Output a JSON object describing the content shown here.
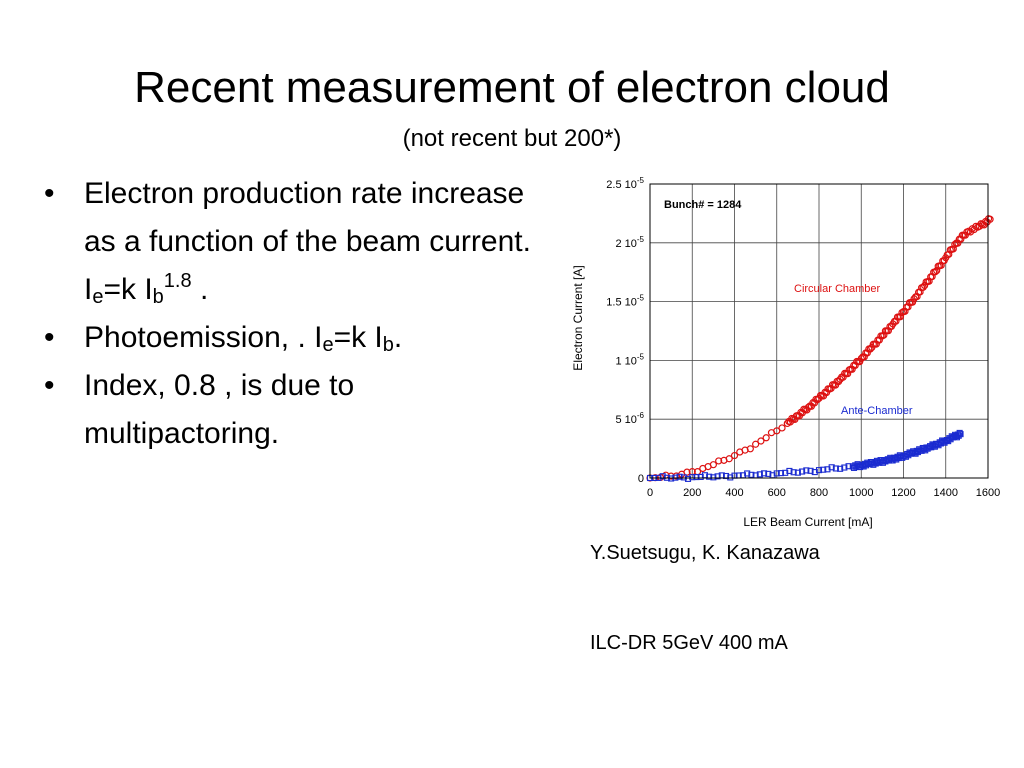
{
  "slide": {
    "title": "Recent measurement of electron cloud",
    "subtitle": "(not recent but 200*)",
    "bullets": [
      {
        "pre": "Electron production rate increase as a function of the beam current. I",
        "sub1": "e",
        "mid": "=k I",
        "sub2": "b",
        "sup": "1.8",
        "post": " ."
      },
      {
        "pre": "Photoemission, . I",
        "sub1": "e",
        "mid": "=k I",
        "sub2": "b",
        "sup": "",
        "post": "."
      },
      {
        "pre": "Index, 0.8 , is due to multipactoring.",
        "sub1": "",
        "mid": "",
        "sub2": "",
        "sup": "",
        "post": ""
      }
    ],
    "credit": "Y.Suetsugu, K. Kanazawa",
    "note": "ILC-DR 5GeV 400 mA"
  },
  "chart_data": {
    "type": "scatter",
    "title": "",
    "annotation": "Bunch# = 1284",
    "xlabel": "LER Beam Current [mA]",
    "ylabel": "Electron Current [A]",
    "xlim": [
      0,
      1600
    ],
    "ylim": [
      0,
      2.5e-05
    ],
    "grid": true,
    "x_ticks": [
      0,
      200,
      400,
      600,
      800,
      1000,
      1200,
      1400,
      1600
    ],
    "y_ticks": [
      {
        "value": 0,
        "mant": "0",
        "exp": ""
      },
      {
        "value": 5e-06,
        "mant": "5 10",
        "exp": "-6"
      },
      {
        "value": 1e-05,
        "mant": "1 10",
        "exp": "-5"
      },
      {
        "value": 1.5e-05,
        "mant": "1.5 10",
        "exp": "-5"
      },
      {
        "value": 2e-05,
        "mant": "2 10",
        "exp": "-5"
      },
      {
        "value": 2.5e-05,
        "mant": "2.5 10",
        "exp": "-5"
      }
    ],
    "series": [
      {
        "name": "Circular Chamber",
        "color": "#dd1111",
        "marker": "circle",
        "x": [
          0,
          50,
          100,
          150,
          200,
          250,
          300,
          350,
          400,
          450,
          500,
          550,
          600,
          650,
          700,
          750,
          800,
          850,
          900,
          950,
          1000,
          1050,
          1100,
          1150,
          1200,
          1250,
          1300,
          1350,
          1400,
          1450,
          1500,
          1560,
          1610
        ],
        "y": [
          0,
          5e-08,
          1.6e-07,
          3.2e-07,
          5.4e-07,
          8.1e-07,
          1.13e-06,
          1.5e-06,
          1.91e-06,
          2.37e-06,
          2.87e-06,
          3.42e-06,
          4.01e-06,
          4.64e-06,
          5.31e-06,
          6.02e-06,
          6.77e-06,
          7.56e-06,
          8.39e-06,
          9.25e-06,
          1.016e-05,
          1.11e-05,
          1.208e-05,
          1.31e-05,
          1.415e-05,
          1.524e-05,
          1.637e-05,
          1.753e-05,
          1.873e-05,
          1.997e-05,
          2.092e-05,
          2.14e-05,
          2.2e-05
        ]
      },
      {
        "name": "Ante-Chamber",
        "color": "#1a2bd0",
        "marker": "square",
        "x": [
          0,
          40,
          80,
          120,
          160,
          200,
          240,
          280,
          320,
          360,
          400,
          440,
          480,
          520,
          560,
          600,
          640,
          680,
          720,
          760,
          800,
          840,
          880,
          920,
          960,
          1000,
          1040,
          1080,
          1120,
          1160,
          1200,
          1240,
          1280,
          1320,
          1360,
          1400,
          1440,
          1470
        ],
        "y": [
          0,
          1e-08,
          2e-08,
          3e-08,
          5e-08,
          7e-08,
          9e-08,
          1.1e-07,
          1.4e-07,
          1.7e-07,
          2e-07,
          2.3e-07,
          2.7e-07,
          3.1e-07,
          3.5e-07,
          3.9e-07,
          4.4e-07,
          4.9e-07,
          5.5e-07,
          6.1e-07,
          6.7e-07,
          7.4e-07,
          8.1e-07,
          8.9e-07,
          9.8e-07,
          1.08e-06,
          1.2e-06,
          1.34e-06,
          1.5e-06,
          1.68e-06,
          1.88e-06,
          2.1e-06,
          2.34e-06,
          2.6e-06,
          2.88e-06,
          3.18e-06,
          3.5e-06,
          3.73e-06
        ]
      }
    ]
  }
}
